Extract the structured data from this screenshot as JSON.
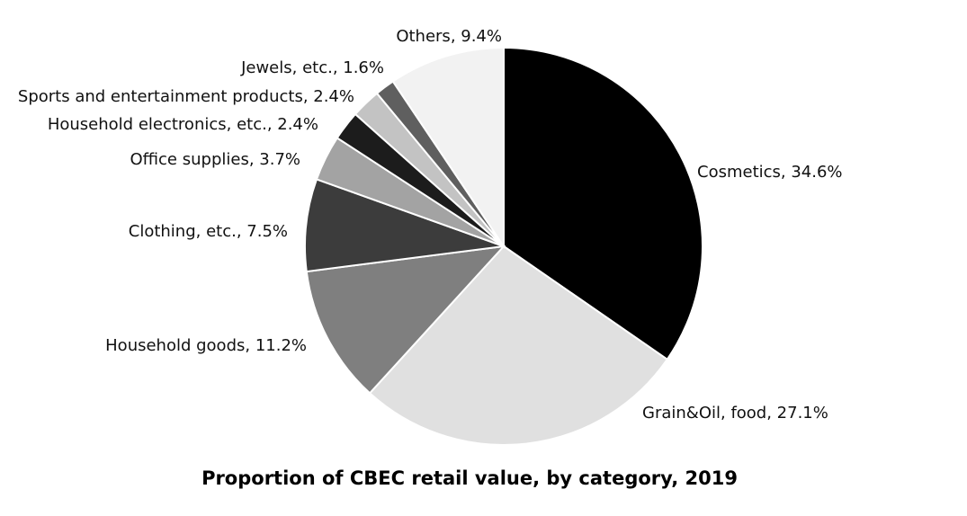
{
  "chart_data": {
    "type": "pie",
    "title": "Proportion of CBEC retail value, by category, 2019",
    "start": "12 o'clock",
    "direction": "clockwise",
    "slices": [
      {
        "label": "Cosmetics",
        "value": 34.6,
        "display": "Cosmetics, 34.6%",
        "color": "#000000"
      },
      {
        "label": "Grain&Oil, food",
        "value": 27.1,
        "display": "Grain&Oil, food, 27.1%",
        "color": "#e0e0e0"
      },
      {
        "label": "Household goods",
        "value": 11.2,
        "display": "Household goods, 11.2%",
        "color": "#7f7f7f"
      },
      {
        "label": "Clothing, etc.",
        "value": 7.5,
        "display": "Clothing, etc., 7.5%",
        "color": "#3c3c3c"
      },
      {
        "label": "Office supplies",
        "value": 3.7,
        "display": "Office supplies, 3.7%",
        "color": "#a3a3a3"
      },
      {
        "label": "Household electronics, etc.",
        "value": 2.4,
        "display": "Household electronics, etc., 2.4%",
        "color": "#1c1c1c"
      },
      {
        "label": "Sports and entertainment products",
        "value": 2.4,
        "display": "Sports and entertainment products, 2.4%",
        "color": "#c3c3c3"
      },
      {
        "label": "Jewels, etc.",
        "value": 1.6,
        "display": "Jewels, etc., 1.6%",
        "color": "#5f5f5f"
      },
      {
        "label": "Others",
        "value": 9.4,
        "display": "Others, 9.4%",
        "color": "#f2f2f2"
      }
    ]
  }
}
